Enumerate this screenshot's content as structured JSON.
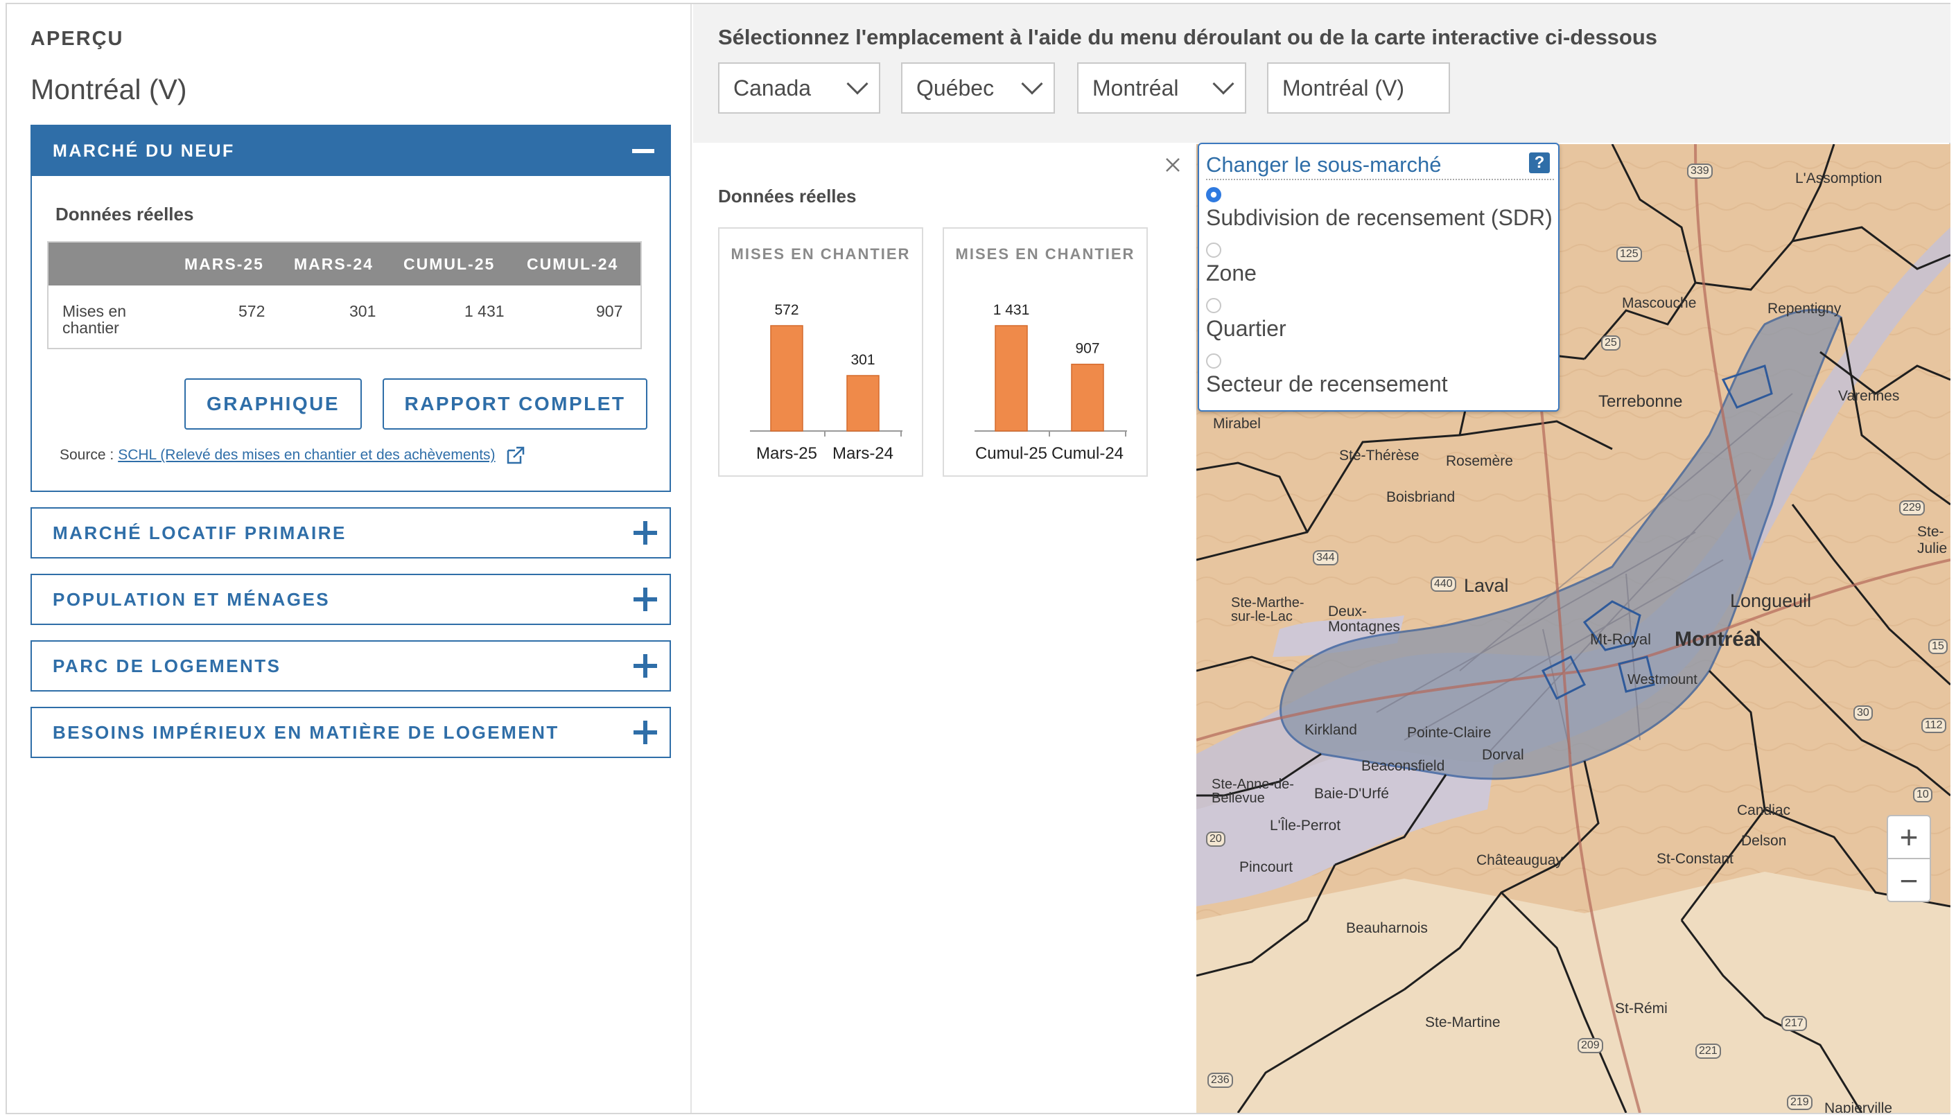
{
  "overview": {
    "label": "APERÇU",
    "place": "Montréal (V)"
  },
  "accordions": {
    "open": {
      "title": "MARCHÉ DU NEUF"
    },
    "closed": [
      {
        "title": "MARCHÉ LOCATIF PRIMAIRE"
      },
      {
        "title": "POPULATION ET MÉNAGES"
      },
      {
        "title": "PARC DE LOGEMENTS"
      },
      {
        "title": "BESOINS IMPÉRIEUX EN MATIÈRE DE LOGEMENT"
      }
    ]
  },
  "new_market": {
    "section_title": "Données réelles",
    "table": {
      "headers": [
        "MARS-25",
        "MARS-24",
        "CUMUL-25",
        "CUMUL-24"
      ],
      "row_label_1": "Mises en",
      "row_label_2": "chantier",
      "values": [
        "572",
        "301",
        "1 431",
        "907"
      ]
    },
    "buttons": {
      "chart": "GRAPHIQUE",
      "report": "RAPPORT COMPLET"
    },
    "source_prefix": "Source :",
    "source_link": "SCHL (Relevé des mises en chantier et des achèvements)"
  },
  "location": {
    "instruction": "Sélectionnez l'emplacement à l'aide du menu déroulant ou de la carte interactive ci-dessous",
    "country": "Canada",
    "province": "Québec",
    "cma": "Montréal",
    "subdivision": "Montréal (V)"
  },
  "charts_panel": {
    "title": "Données réelles"
  },
  "chart_data": [
    {
      "type": "bar",
      "title": "MISES EN CHANTIER",
      "categories": [
        "Mars-25",
        "Mars-24"
      ],
      "values": [
        572,
        301
      ],
      "value_labels": [
        "572",
        "301"
      ],
      "color": "#ef8a4a"
    },
    {
      "type": "bar",
      "title": "MISES EN CHANTIER",
      "categories": [
        "Cumul-25",
        "Cumul-24"
      ],
      "values": [
        1431,
        907
      ],
      "value_labels": [
        "1 431",
        "907"
      ],
      "color": "#ef8a4a"
    }
  ],
  "submarket": {
    "title": "Changer le sous-marché",
    "help": "?",
    "options": [
      {
        "label": "Subdivision de recensement (SDR)",
        "selected": true
      },
      {
        "label": "Zone",
        "selected": false
      },
      {
        "label": "Quartier",
        "selected": false
      },
      {
        "label": "Secteur de recensement",
        "selected": false
      }
    ]
  },
  "map": {
    "labels": [
      {
        "text": "L'Assomption"
      },
      {
        "text": "Mascouche"
      },
      {
        "text": "Repentigny"
      },
      {
        "text": "Terrebonne"
      },
      {
        "text": "Varennes"
      },
      {
        "text": "Mirabel"
      },
      {
        "text": "Ste-Thérèse"
      },
      {
        "text": "Rosemère"
      },
      {
        "text": "Boisbriand"
      },
      {
        "text": "Laval"
      },
      {
        "text": "Longueuil"
      },
      {
        "text": "Ste-Julie"
      },
      {
        "text": "Ste-Marthe-sur-le-Lac"
      },
      {
        "text": "Deux-Montagnes"
      },
      {
        "text": "Mt-Royal"
      },
      {
        "text": "Montréal"
      },
      {
        "text": "Westmount"
      },
      {
        "text": "Kirkland"
      },
      {
        "text": "Pointe-Claire"
      },
      {
        "text": "Beaconsfield"
      },
      {
        "text": "Dorval"
      },
      {
        "text": "Ste-Anne-de-Bellevue"
      },
      {
        "text": "Baie-D'Urfé"
      },
      {
        "text": "L'Île-Perrot"
      },
      {
        "text": "Pincourt"
      },
      {
        "text": "Candiac"
      },
      {
        "text": "Delson"
      },
      {
        "text": "St-Constant"
      },
      {
        "text": "Châteauguay"
      },
      {
        "text": "Beauharnois"
      },
      {
        "text": "St-Rémi"
      },
      {
        "text": "Ste-Martine"
      },
      {
        "text": "Napierville"
      }
    ],
    "shields": [
      "339",
      "125",
      "25",
      "440",
      "344",
      "229",
      "30",
      "10",
      "112",
      "217",
      "221",
      "209",
      "236",
      "219",
      "20",
      "15"
    ],
    "zoom_in": "+",
    "zoom_out": "−"
  }
}
